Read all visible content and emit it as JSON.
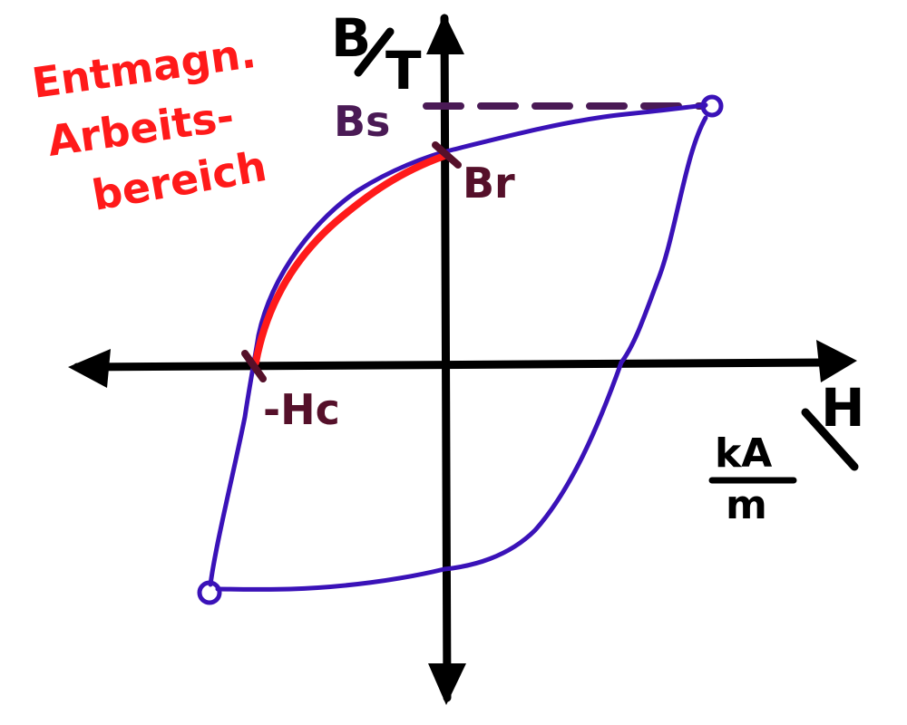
{
  "annotation": {
    "lines": [
      "Entmagn.",
      "Arbeits-",
      "bereich"
    ]
  },
  "labels": {
    "b_axis_top": "B",
    "b_axis_unit": "T",
    "h_axis": "H",
    "unit_numerator": "kA",
    "unit_denominator": "m",
    "bs": "Bs",
    "br": "Br",
    "hc": "-Hc"
  },
  "colors": {
    "axes": "#000000",
    "loop": "#3a12b8",
    "demag_curve": "#ff1a1a",
    "annotation": "#ff1a1a",
    "markers": "#55102a",
    "saturation_line": "#4a1a55"
  }
}
